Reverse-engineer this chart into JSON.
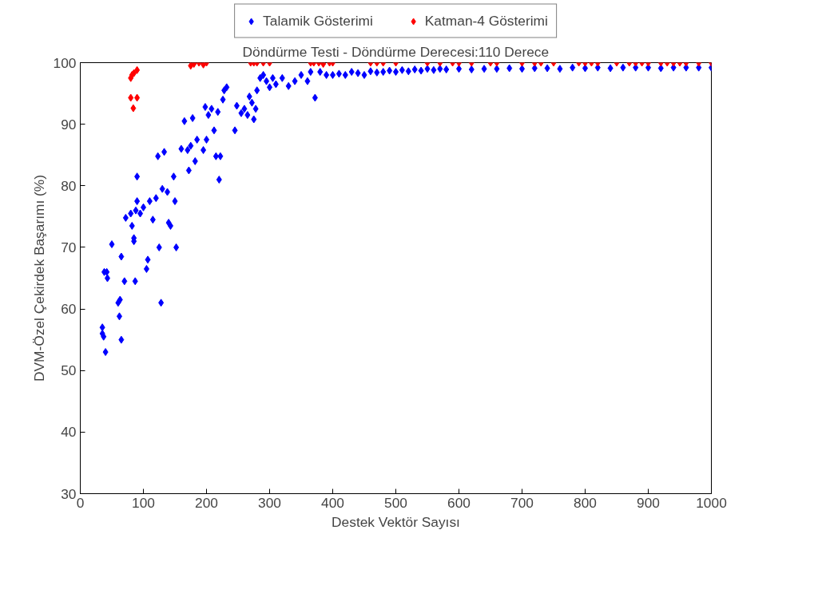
{
  "chart_data": {
    "type": "scatter",
    "title": "Döndürme Testi - Döndürme Derecesi:110 Derece",
    "xlabel": "Destek Vektör Sayısı",
    "ylabel": "DVM-Özel Çekirdek Başarımı (%)",
    "xlim": [
      0,
      1000
    ],
    "ylim": [
      30,
      100
    ],
    "xticks": [
      0,
      100,
      200,
      300,
      400,
      500,
      600,
      700,
      800,
      900,
      1000
    ],
    "yticks": [
      30,
      40,
      50,
      60,
      70,
      80,
      90,
      100
    ],
    "grid": false,
    "legend": "top",
    "marker": "diamond",
    "series": [
      {
        "name": "Talamik Gösterimi",
        "color": "#0000ff",
        "x": [
          35,
          35,
          37,
          40,
          38,
          42,
          43,
          50,
          60,
          62,
          63,
          65,
          65,
          70,
          72,
          80,
          82,
          85,
          85,
          87,
          88,
          90,
          90,
          95,
          100,
          105,
          107,
          110,
          115,
          120,
          123,
          125,
          128,
          130,
          133,
          138,
          140,
          143,
          148,
          150,
          152,
          160,
          165,
          170,
          172,
          175,
          178,
          182,
          185,
          195,
          198,
          200,
          203,
          208,
          212,
          215,
          218,
          220,
          222,
          226,
          228,
          232,
          245,
          248,
          255,
          260,
          265,
          268,
          272,
          275,
          278,
          280,
          285,
          290,
          295,
          300,
          305,
          310,
          320,
          330,
          340,
          350,
          360,
          365,
          372,
          380,
          390,
          400,
          410,
          420,
          430,
          440,
          450,
          460,
          470,
          480,
          490,
          500,
          510,
          520,
          530,
          540,
          550,
          560,
          570,
          580,
          600,
          620,
          640,
          660,
          680,
          700,
          720,
          740,
          760,
          780,
          800,
          820,
          840,
          860,
          880,
          900,
          920,
          940,
          960,
          980,
          1000
        ],
        "values": [
          57,
          56,
          55.5,
          53,
          66,
          66,
          65,
          70.5,
          61,
          58.8,
          61.5,
          55,
          68.5,
          64.5,
          74.8,
          75.5,
          73.5,
          71.5,
          71,
          64.5,
          76,
          77.5,
          81.5,
          75.5,
          76.5,
          66.5,
          68,
          77.5,
          74.5,
          78,
          84.8,
          70,
          61,
          79.5,
          85.5,
          79,
          74,
          73.5,
          81.5,
          77.5,
          70,
          86,
          90.5,
          85.8,
          82.5,
          86.5,
          91,
          84,
          87.5,
          85.8,
          92.8,
          87.5,
          91.5,
          92.5,
          89,
          84.8,
          92,
          81,
          84.8,
          94,
          95.5,
          96,
          89,
          93,
          91.8,
          92.5,
          91.5,
          94.5,
          93.5,
          90.8,
          92.5,
          95.5,
          97.5,
          98,
          97,
          96,
          97.5,
          96.5,
          97.5,
          96.2,
          97,
          98,
          97,
          98.5,
          94.3,
          98.5,
          98,
          98,
          98.2,
          98,
          98.5,
          98.3,
          98,
          98.6,
          98.4,
          98.5,
          98.7,
          98.5,
          98.8,
          98.6,
          98.9,
          98.7,
          99,
          98.8,
          99,
          98.9,
          99,
          98.9,
          99,
          99,
          99.1,
          99,
          99.1,
          99.1,
          99,
          99.2,
          99.1,
          99.2,
          99.1,
          99.2,
          99.2,
          99.2,
          99.1,
          99.2,
          99.2,
          99.2,
          99.2
        ]
      },
      {
        "name": "Katman-4 Gösterimi",
        "color": "#ff0000",
        "x": [
          80,
          82,
          85,
          90,
          80,
          90,
          84,
          175,
          180,
          188,
          195,
          200,
          270,
          275,
          280,
          290,
          300,
          365,
          370,
          378,
          385,
          395,
          400,
          460,
          470,
          480,
          500,
          550,
          570,
          590,
          600,
          620,
          650,
          660,
          700,
          720,
          730,
          750,
          790,
          800,
          810,
          820,
          850,
          870,
          880,
          890,
          900,
          920,
          930,
          940,
          950,
          960,
          980,
          1000
        ],
        "values": [
          97.5,
          98,
          98.3,
          98.8,
          94.3,
          94.3,
          92.6,
          99.5,
          99.8,
          100,
          99.7,
          100,
          100,
          100,
          100,
          100,
          100,
          100,
          100,
          100,
          99.8,
          100,
          100,
          100,
          100,
          100,
          100,
          100,
          100,
          100,
          100,
          100,
          100,
          100,
          100,
          100,
          100,
          100,
          100,
          100,
          100,
          100,
          100,
          100,
          100,
          100,
          100,
          100,
          100,
          100,
          100,
          100,
          100,
          100
        ]
      }
    ]
  }
}
